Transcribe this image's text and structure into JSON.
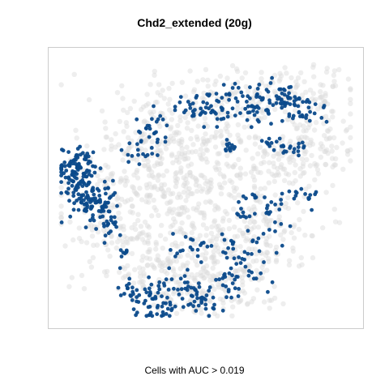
{
  "chart_data": {
    "type": "scatter",
    "title": "Chd2_extended (20g)",
    "caption": "Cells with AUC > 0.019",
    "xlabel": "",
    "ylabel": "",
    "grid": false,
    "legend": "none",
    "axes_ticks": "none",
    "xlim": [
      0,
      100
    ],
    "ylim": [
      0,
      100
    ],
    "colors": {
      "background_cells": "#d9d9d9",
      "highlighted_cells": "#0b4a8b",
      "frame": "#cccccc"
    },
    "series": [
      {
        "category": "all cells",
        "point_count": 1400,
        "clusters": [
          [
            62,
            87,
            22,
            6,
            130
          ],
          [
            45,
            78,
            14,
            6,
            60
          ],
          [
            55,
            66,
            18,
            8,
            110
          ],
          [
            30,
            55,
            16,
            10,
            110
          ],
          [
            20,
            42,
            10,
            8,
            60
          ],
          [
            40,
            44,
            14,
            8,
            80
          ],
          [
            58,
            38,
            12,
            6,
            60
          ],
          [
            72,
            38,
            8,
            6,
            40
          ],
          [
            80,
            60,
            10,
            6,
            60
          ],
          [
            88,
            72,
            8,
            8,
            50
          ],
          [
            75,
            55,
            8,
            6,
            40
          ],
          [
            38,
            20,
            14,
            8,
            110
          ],
          [
            55,
            22,
            12,
            8,
            100
          ],
          [
            42,
            10,
            10,
            5,
            60
          ],
          [
            60,
            10,
            10,
            5,
            50
          ],
          [
            70,
            30,
            10,
            6,
            50
          ],
          [
            25,
            30,
            10,
            6,
            50
          ],
          [
            50,
            55,
            10,
            6,
            70
          ],
          [
            35,
            68,
            10,
            6,
            60
          ],
          [
            85,
            85,
            8,
            5,
            40
          ]
        ]
      },
      {
        "category": "cells with AUC > 0.019",
        "point_count": 660,
        "clusters": [
          [
            5,
            57,
            3,
            5,
            80
          ],
          [
            10,
            48,
            3,
            6,
            70
          ],
          [
            14,
            43,
            3,
            4,
            40
          ],
          [
            18,
            37,
            2,
            3,
            20
          ],
          [
            8,
            61,
            2,
            2,
            15
          ],
          [
            47,
            81,
            4,
            3,
            30
          ],
          [
            54,
            79,
            3,
            3,
            15
          ],
          [
            61,
            85,
            5,
            3,
            30
          ],
          [
            68,
            80,
            5,
            3,
            30
          ],
          [
            77,
            85,
            4,
            3,
            25
          ],
          [
            84,
            80,
            4,
            3,
            25
          ],
          [
            73,
            87,
            4,
            2,
            15
          ],
          [
            32,
            73,
            3,
            3,
            25
          ],
          [
            27,
            64,
            3,
            2,
            15
          ],
          [
            58,
            66,
            2,
            2,
            12
          ],
          [
            73,
            67,
            2,
            2,
            12
          ],
          [
            80,
            65,
            3,
            2,
            15
          ],
          [
            82,
            47,
            3,
            2,
            15
          ],
          [
            74,
            43,
            2,
            3,
            12
          ],
          [
            65,
            46,
            2,
            2,
            8
          ],
          [
            55,
            27,
            8,
            3,
            25
          ],
          [
            70,
            32,
            3,
            3,
            10
          ],
          [
            66,
            20,
            4,
            5,
            20
          ],
          [
            45,
            28,
            3,
            2,
            10
          ],
          [
            26,
            10,
            3,
            3,
            25
          ],
          [
            33,
            8,
            4,
            4,
            30
          ],
          [
            44,
            12,
            5,
            4,
            35
          ],
          [
            48,
            5,
            4,
            3,
            20
          ],
          [
            37,
            3,
            3,
            2,
            12
          ],
          [
            56,
            13,
            4,
            4,
            20
          ],
          [
            22,
            24,
            2,
            2,
            8
          ],
          [
            62,
            40,
            2,
            2,
            8
          ]
        ]
      }
    ]
  }
}
